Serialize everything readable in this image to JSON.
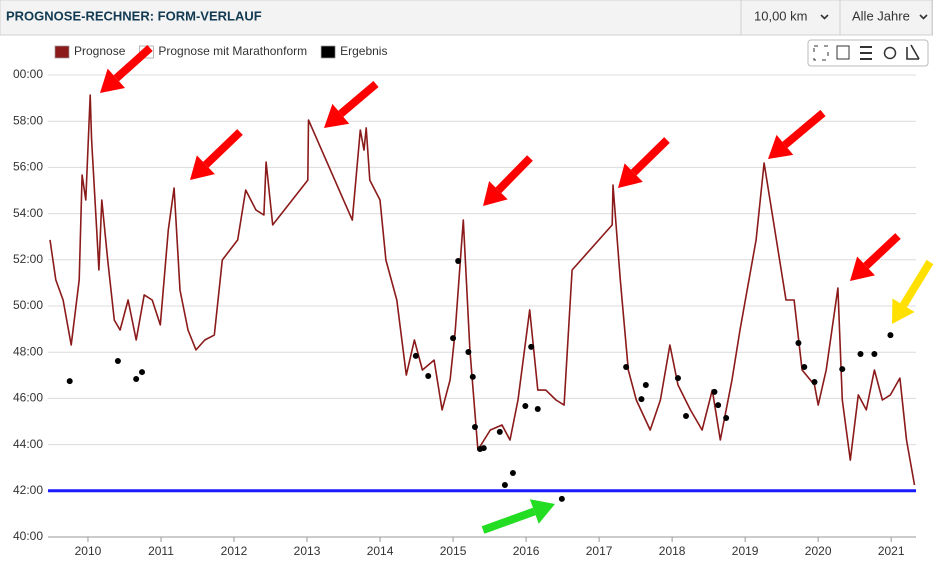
{
  "header": {
    "title": "PROGNOSE-RECHNER: FORM-VERLAUF",
    "distance": "10,00 km",
    "period": "Alle Jahre"
  },
  "chart_data": {
    "type": "line",
    "xlim": [
      2009.48,
      2021.34
    ],
    "xticks": [
      2010,
      2011,
      2012,
      2013,
      2014,
      2015,
      2016,
      2017,
      2018,
      2019,
      2020,
      2021
    ],
    "ylim": [
      40,
      60
    ],
    "yticks": [
      {
        "value": 40,
        "label": "40:00"
      },
      {
        "value": 42,
        "label": "42:00"
      },
      {
        "value": 44,
        "label": "44:00"
      },
      {
        "value": 46,
        "label": "46:00"
      },
      {
        "value": 48,
        "label": "48:00"
      },
      {
        "value": 50,
        "label": "50:00"
      },
      {
        "value": 52,
        "label": "52:00"
      },
      {
        "value": 54,
        "label": "54:00"
      },
      {
        "value": 56,
        "label": "56:00"
      },
      {
        "value": 58,
        "label": "58:00"
      },
      {
        "value": 60,
        "label": "00:00"
      }
    ],
    "grid": true,
    "reference_line": {
      "value": 42,
      "color": "#1a1aff"
    },
    "series": [
      {
        "name": "Prognose",
        "color": "#8b1a1a",
        "kind": "line",
        "x": [
          2009.48,
          2009.56,
          2009.66,
          2009.77,
          2009.88,
          2009.92,
          2009.97,
          2010.03,
          2010.05,
          2010.12,
          2010.15,
          2010.19,
          2010.27,
          2010.36,
          2010.44,
          2010.55,
          2010.66,
          2010.77,
          2010.88,
          2010.99,
          2011.1,
          2011.18,
          2011.26,
          2011.37,
          2011.48,
          2011.6,
          2011.73,
          2011.84,
          2012.05,
          2012.16,
          2012.3,
          2012.41,
          2012.44,
          2012.53,
          2013.01,
          2013.02,
          2013.62,
          2013.73,
          2013.78,
          2013.81,
          2013.86,
          2014.0,
          2014.08,
          2014.23,
          2014.36,
          2014.47,
          2014.58,
          2014.74,
          2014.85,
          2014.96,
          2015.03,
          2015.14,
          2015.23,
          2015.34,
          2015.51,
          2015.67,
          2015.78,
          2015.89,
          2016.05,
          2016.16,
          2016.27,
          2016.41,
          2016.52,
          2016.63,
          2017.18,
          2017.19,
          2017.29,
          2017.4,
          2017.51,
          2017.7,
          2017.84,
          2017.97,
          2018.08,
          2018.25,
          2018.41,
          2018.55,
          2018.66,
          2018.82,
          2018.93,
          2019.15,
          2019.26,
          2019.56,
          2019.67,
          2019.78,
          2019.95,
          2020.0,
          2020.11,
          2020.27,
          2020.33,
          2020.44,
          2020.55,
          2020.66,
          2020.77,
          2020.88,
          2020.99,
          2021.12,
          2021.21,
          2021.32
        ],
        "values": [
          52.86,
          51.13,
          50.26,
          48.31,
          51.13,
          55.67,
          54.59,
          59.13,
          57.19,
          53.29,
          51.56,
          54.59,
          51.99,
          49.39,
          48.96,
          50.26,
          48.53,
          50.48,
          50.26,
          49.18,
          53.29,
          55.11,
          50.69,
          48.96,
          48.1,
          48.53,
          48.74,
          51.99,
          52.86,
          55.02,
          54.16,
          53.94,
          56.23,
          53.51,
          55.45,
          58.05,
          53.72,
          57.62,
          56.75,
          57.71,
          55.45,
          54.59,
          51.99,
          50.26,
          47.01,
          48.53,
          47.23,
          47.66,
          45.5,
          46.8,
          48.96,
          53.72,
          48.1,
          43.77,
          44.63,
          44.85,
          44.2,
          45.93,
          49.83,
          46.36,
          46.36,
          45.93,
          45.71,
          51.56,
          53.51,
          55.24,
          51.13,
          47.23,
          45.93,
          44.63,
          45.93,
          48.31,
          46.58,
          45.5,
          44.63,
          46.36,
          44.2,
          46.8,
          48.96,
          52.86,
          56.19,
          50.26,
          50.26,
          47.23,
          46.58,
          45.71,
          47.23,
          50.78,
          45.93,
          43.33,
          46.15,
          45.5,
          47.23,
          45.93,
          46.15,
          46.88,
          44.2,
          42.25
        ]
      },
      {
        "name": "Prognose mit Marathonform",
        "color": "#ffffff",
        "kind": "line",
        "x": [],
        "values": []
      },
      {
        "name": "Ergebnis",
        "color": "#000000",
        "kind": "scatter",
        "x": [
          2009.75,
          2010.41,
          2010.66,
          2010.74,
          2014.49,
          2014.66,
          2015.0,
          2015.07,
          2015.21,
          2015.27,
          2015.3,
          2015.37,
          2015.42,
          2015.64,
          2015.71,
          2015.82,
          2015.99,
          2016.07,
          2016.16,
          2016.49,
          2017.37,
          2017.58,
          2017.64,
          2018.08,
          2018.19,
          2018.58,
          2018.63,
          2018.74,
          2019.73,
          2019.81,
          2019.95,
          2020.33,
          2020.58,
          2020.77,
          2020.99
        ],
        "values": [
          46.75,
          47.62,
          46.84,
          47.14,
          47.84,
          46.97,
          48.61,
          51.95,
          48.01,
          46.93,
          44.76,
          43.81,
          43.85,
          44.55,
          42.25,
          42.77,
          45.67,
          48.23,
          45.54,
          41.65,
          47.36,
          45.97,
          46.58,
          46.88,
          45.24,
          46.28,
          45.71,
          45.15,
          48.4,
          47.36,
          46.71,
          47.27,
          47.92,
          47.92,
          48.74
        ]
      }
    ]
  }
}
